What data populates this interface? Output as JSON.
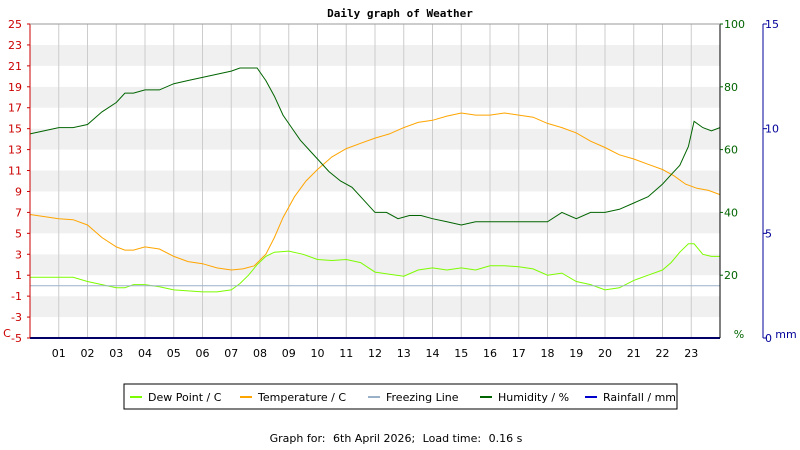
{
  "chart_data": {
    "type": "line",
    "title": "Daily graph of Weather",
    "footer_label": "Graph for:",
    "footer_date": "6th April 2026",
    "footer_load_label": "Load time:",
    "footer_load_value": "0.16 s",
    "x_ticks": [
      "01",
      "02",
      "03",
      "04",
      "05",
      "06",
      "07",
      "08",
      "09",
      "10",
      "11",
      "12",
      "13",
      "14",
      "15",
      "16",
      "17",
      "18",
      "19",
      "20",
      "21",
      "22",
      "23"
    ],
    "x_range": [
      0,
      24
    ],
    "y_left": {
      "unit": "C",
      "range": [
        -5,
        25
      ],
      "ticks": [
        "-5",
        "-3",
        "-1",
        "1",
        "3",
        "5",
        "7",
        "9",
        "11",
        "13",
        "15",
        "17",
        "19",
        "21",
        "23",
        "25"
      ]
    },
    "y_humidity": {
      "unit": "%",
      "range": [
        0,
        100
      ],
      "ticks": [
        "0",
        "20",
        "40",
        "60",
        "80",
        "100"
      ]
    },
    "y_rain": {
      "unit": "mm",
      "range": [
        0,
        15
      ],
      "ticks": [
        "0",
        "5",
        "10",
        "15"
      ]
    },
    "colors": {
      "dew_point": "#7cfc00",
      "temperature": "#ffa500",
      "freezing": "#9ab1c9",
      "humidity": "#006400",
      "rainfall": "#0000cd",
      "axis_left": "#cc0000",
      "axis_humidity": "#006400",
      "axis_rain": "#000099",
      "band": "#f0f0f0",
      "grid": "#cccccc"
    },
    "series": [
      {
        "key": "dew_point",
        "name": "Dew Point / C",
        "axis": "left",
        "x": [
          0,
          0.5,
          1,
          1.5,
          2,
          2.5,
          3,
          3.3,
          3.6,
          4,
          4.5,
          5,
          5.5,
          6,
          6.5,
          7,
          7.3,
          7.6,
          7.9,
          8.2,
          8.5,
          9,
          9.5,
          10,
          10.5,
          11,
          11.5,
          12,
          12.5,
          13,
          13.5,
          14,
          14.5,
          15,
          15.5,
          16,
          16.5,
          17,
          17.5,
          18,
          18.5,
          19,
          19.5,
          20,
          20.5,
          21,
          21.5,
          22,
          22.3,
          22.6,
          22.9,
          23.1,
          23.4,
          23.7,
          24
        ],
        "y": [
          0.8,
          0.8,
          0.8,
          0.8,
          0.4,
          0.1,
          -0.2,
          -0.2,
          0.1,
          0.1,
          -0.1,
          -0.4,
          -0.5,
          -0.6,
          -0.6,
          -0.4,
          0.2,
          1.0,
          2.0,
          2.8,
          3.2,
          3.3,
          3.0,
          2.5,
          2.4,
          2.5,
          2.2,
          1.3,
          1.1,
          0.9,
          1.5,
          1.7,
          1.5,
          1.7,
          1.5,
          1.9,
          1.9,
          1.8,
          1.6,
          1.0,
          1.2,
          0.4,
          0.1,
          -0.4,
          -0.2,
          0.5,
          1.0,
          1.5,
          2.2,
          3.2,
          4.0,
          4.0,
          3.0,
          2.8,
          2.8
        ]
      },
      {
        "key": "temperature",
        "name": "Temperature / C",
        "axis": "left",
        "x": [
          0,
          0.5,
          1,
          1.5,
          2,
          2.5,
          3,
          3.3,
          3.6,
          4,
          4.5,
          5,
          5.5,
          6,
          6.5,
          7,
          7.4,
          7.8,
          8.2,
          8.5,
          8.8,
          9.2,
          9.6,
          10,
          10.5,
          11,
          11.5,
          12,
          12.5,
          13,
          13.5,
          14,
          14.5,
          15,
          15.5,
          16,
          16.5,
          17,
          17.5,
          18,
          18.5,
          19,
          19.5,
          20,
          20.5,
          21,
          21.5,
          22,
          22.4,
          22.8,
          23.2,
          23.6,
          24
        ],
        "y": [
          6.8,
          6.6,
          6.4,
          6.3,
          5.8,
          4.6,
          3.7,
          3.4,
          3.4,
          3.7,
          3.5,
          2.8,
          2.3,
          2.1,
          1.7,
          1.5,
          1.6,
          1.9,
          3.0,
          4.6,
          6.5,
          8.5,
          10.0,
          11.1,
          12.3,
          13.1,
          13.6,
          14.1,
          14.5,
          15.1,
          15.6,
          15.8,
          16.2,
          16.5,
          16.3,
          16.3,
          16.5,
          16.3,
          16.1,
          15.5,
          15.1,
          14.6,
          13.8,
          13.2,
          12.5,
          12.1,
          11.6,
          11.1,
          10.5,
          9.7,
          9.3,
          9.1,
          8.7
        ]
      },
      {
        "key": "freezing",
        "name": "Freezing Line",
        "axis": "left",
        "x": [
          0,
          24
        ],
        "y": [
          0,
          0
        ]
      },
      {
        "key": "humidity",
        "name": "Humidity / %",
        "axis": "humidity",
        "x": [
          0,
          0.5,
          1,
          1.5,
          2,
          2.5,
          3,
          3.3,
          3.6,
          4,
          4.5,
          5,
          5.5,
          6,
          6.5,
          7,
          7.3,
          7.6,
          7.9,
          8.2,
          8.5,
          8.8,
          9.1,
          9.4,
          9.7,
          10,
          10.4,
          10.8,
          11.2,
          11.6,
          12,
          12.4,
          12.8,
          13.2,
          13.6,
          14,
          14.5,
          15,
          15.5,
          16,
          16.5,
          17,
          17.5,
          18,
          18.5,
          19,
          19.5,
          20,
          20.5,
          21,
          21.5,
          22,
          22.3,
          22.6,
          22.9,
          23.1,
          23.4,
          23.7,
          24
        ],
        "y": [
          65,
          66,
          67,
          67,
          68,
          72,
          75,
          78,
          78,
          79,
          79,
          81,
          82,
          83,
          84,
          85,
          86,
          86,
          86,
          82,
          77,
          71,
          67,
          63,
          60,
          57,
          53,
          50,
          48,
          44,
          40,
          40,
          38,
          39,
          39,
          38,
          37,
          36,
          37,
          37,
          37,
          37,
          37,
          37,
          40,
          38,
          40,
          40,
          41,
          43,
          45,
          49,
          52,
          55,
          61,
          69,
          67,
          66,
          67
        ]
      },
      {
        "key": "rainfall",
        "name": "Rainfall / mm",
        "axis": "rain",
        "x": [
          0,
          24
        ],
        "y": [
          0,
          0
        ]
      }
    ],
    "legend_position": "bottom-center",
    "grid": true
  }
}
